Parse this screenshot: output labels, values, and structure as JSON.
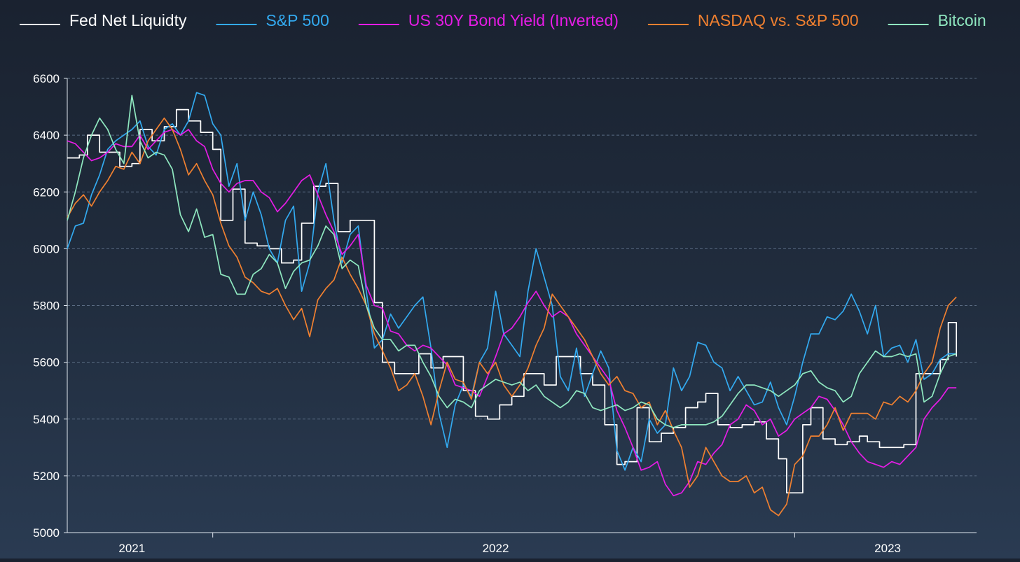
{
  "chart_data": {
    "type": "line",
    "title": "",
    "xlabel": "",
    "ylabel": "",
    "ylim": [
      5000,
      6600
    ],
    "yticks": [
      5000,
      5200,
      5400,
      5600,
      5800,
      6000,
      6200,
      6400,
      6600
    ],
    "xlim": [
      2020.92,
      2023.17
    ],
    "xticks": [
      {
        "label": "2021",
        "at": 2021.08
      },
      {
        "label": "2022",
        "at": 2021.98
      },
      {
        "label": "2023",
        "at": 2022.95
      }
    ],
    "xtick_marks": [
      2021.28,
      2022.72
    ],
    "grid": "horizontal-dashed",
    "legend_position": "top",
    "series": [
      {
        "name": "Fed Net Liquidty",
        "color": "#ffffff",
        "style": "step",
        "x": [
          2020.92,
          2020.95,
          2020.97,
          2021.0,
          2021.02,
          2021.05,
          2021.08,
          2021.1,
          2021.13,
          2021.16,
          2021.19,
          2021.22,
          2021.25,
          2021.28,
          2021.3,
          2021.33,
          2021.36,
          2021.39,
          2021.42,
          2021.45,
          2021.48,
          2021.5,
          2021.53,
          2021.56,
          2021.59,
          2021.62,
          2021.65,
          2021.68,
          2021.7,
          2021.73,
          2021.76,
          2021.79,
          2021.82,
          2021.85,
          2021.88,
          2021.9,
          2021.93,
          2021.96,
          2021.99,
          2022.02,
          2022.05,
          2022.08,
          2022.1,
          2022.13,
          2022.16,
          2022.19,
          2022.22,
          2022.25,
          2022.28,
          2022.3,
          2022.33,
          2022.36,
          2022.39,
          2022.42,
          2022.45,
          2022.48,
          2022.5,
          2022.53,
          2022.56,
          2022.59,
          2022.62,
          2022.65,
          2022.68,
          2022.7,
          2022.72,
          2022.74,
          2022.76,
          2022.79,
          2022.82,
          2022.85,
          2022.88,
          2022.9,
          2022.93,
          2022.96,
          2022.99,
          2023.02,
          2023.05,
          2023.08,
          2023.1,
          2023.12
        ],
        "values": [
          6320,
          6330,
          6400,
          6340,
          6340,
          6290,
          6300,
          6420,
          6380,
          6430,
          6490,
          6450,
          6410,
          6350,
          6100,
          6210,
          6020,
          6010,
          6000,
          5950,
          5960,
          6090,
          6220,
          6230,
          6060,
          6100,
          6100,
          5810,
          5600,
          5560,
          5560,
          5630,
          5580,
          5620,
          5620,
          5500,
          5410,
          5400,
          5450,
          5480,
          5560,
          5560,
          5520,
          5620,
          5620,
          5560,
          5520,
          5380,
          5240,
          5250,
          5440,
          5320,
          5350,
          5370,
          5440,
          5460,
          5490,
          5380,
          5370,
          5380,
          5390,
          5330,
          5260,
          5140,
          5140,
          5380,
          5440,
          5330,
          5310,
          5320,
          5340,
          5320,
          5300,
          5300,
          5310,
          5560,
          5560,
          5610,
          5740,
          5620
        ]
      },
      {
        "name": "S&P 500",
        "color": "#33aaf0",
        "style": "line",
        "x": [
          2020.92,
          2020.94,
          2020.96,
          2020.98,
          2021.0,
          2021.02,
          2021.04,
          2021.06,
          2021.08,
          2021.1,
          2021.12,
          2021.14,
          2021.16,
          2021.18,
          2021.2,
          2021.22,
          2021.24,
          2021.26,
          2021.28,
          2021.3,
          2021.32,
          2021.34,
          2021.36,
          2021.38,
          2021.4,
          2021.42,
          2021.44,
          2021.46,
          2021.48,
          2021.5,
          2021.52,
          2021.54,
          2021.56,
          2021.58,
          2021.6,
          2021.62,
          2021.64,
          2021.66,
          2021.68,
          2021.7,
          2021.72,
          2021.74,
          2021.76,
          2021.78,
          2021.8,
          2021.82,
          2021.84,
          2021.86,
          2021.88,
          2021.9,
          2021.92,
          2021.94,
          2021.96,
          2021.98,
          2022.0,
          2022.02,
          2022.04,
          2022.06,
          2022.08,
          2022.1,
          2022.12,
          2022.14,
          2022.16,
          2022.18,
          2022.2,
          2022.22,
          2022.24,
          2022.26,
          2022.28,
          2022.3,
          2022.32,
          2022.34,
          2022.36,
          2022.38,
          2022.4,
          2022.42,
          2022.44,
          2022.46,
          2022.48,
          2022.5,
          2022.52,
          2022.54,
          2022.56,
          2022.58,
          2022.6,
          2022.62,
          2022.64,
          2022.66,
          2022.68,
          2022.7,
          2022.72,
          2022.74,
          2022.76,
          2022.78,
          2022.8,
          2022.82,
          2022.84,
          2022.86,
          2022.88,
          2022.9,
          2022.92,
          2022.94,
          2022.96,
          2022.98,
          2023.0,
          2023.02,
          2023.04,
          2023.06,
          2023.08,
          2023.1,
          2023.12
        ],
        "values": [
          6000,
          6080,
          6090,
          6190,
          6260,
          6350,
          6380,
          6400,
          6420,
          6450,
          6360,
          6330,
          6420,
          6440,
          6400,
          6450,
          6550,
          6540,
          6440,
          6400,
          6220,
          6300,
          6100,
          6200,
          6120,
          6000,
          5950,
          6100,
          6150,
          5850,
          5950,
          6200,
          6300,
          6100,
          5950,
          6050,
          6080,
          5850,
          5650,
          5680,
          5770,
          5720,
          5760,
          5800,
          5830,
          5650,
          5420,
          5300,
          5450,
          5520,
          5480,
          5600,
          5650,
          5850,
          5700,
          5660,
          5620,
          5850,
          6000,
          5900,
          5800,
          5550,
          5500,
          5650,
          5480,
          5560,
          5640,
          5580,
          5290,
          5220,
          5300,
          5250,
          5400,
          5350,
          5380,
          5580,
          5500,
          5550,
          5670,
          5660,
          5600,
          5580,
          5500,
          5550,
          5500,
          5450,
          5460,
          5530,
          5440,
          5380,
          5480,
          5600,
          5700,
          5700,
          5760,
          5750,
          5780,
          5840,
          5780,
          5700,
          5800,
          5620,
          5650,
          5660,
          5600,
          5680,
          5540,
          5560,
          5610,
          5630,
          5630
        ]
      },
      {
        "name": "US 30Y Bond Yield (Inverted)",
        "color": "#e61ce6",
        "style": "line",
        "x": [
          2020.92,
          2020.94,
          2020.96,
          2020.98,
          2021.0,
          2021.02,
          2021.04,
          2021.06,
          2021.08,
          2021.1,
          2021.12,
          2021.14,
          2021.16,
          2021.18,
          2021.2,
          2021.22,
          2021.24,
          2021.26,
          2021.28,
          2021.3,
          2021.32,
          2021.34,
          2021.36,
          2021.38,
          2021.4,
          2021.42,
          2021.44,
          2021.46,
          2021.48,
          2021.5,
          2021.52,
          2021.54,
          2021.56,
          2021.58,
          2021.6,
          2021.62,
          2021.64,
          2021.66,
          2021.68,
          2021.7,
          2021.72,
          2021.74,
          2021.76,
          2021.78,
          2021.8,
          2021.82,
          2021.84,
          2021.86,
          2021.88,
          2021.9,
          2021.92,
          2021.94,
          2021.96,
          2021.98,
          2022.0,
          2022.02,
          2022.04,
          2022.06,
          2022.08,
          2022.1,
          2022.12,
          2022.14,
          2022.16,
          2022.18,
          2022.2,
          2022.22,
          2022.24,
          2022.26,
          2022.28,
          2022.3,
          2022.32,
          2022.34,
          2022.36,
          2022.38,
          2022.4,
          2022.42,
          2022.44,
          2022.46,
          2022.48,
          2022.5,
          2022.52,
          2022.54,
          2022.56,
          2022.58,
          2022.6,
          2022.62,
          2022.64,
          2022.66,
          2022.68,
          2022.7,
          2022.72,
          2022.74,
          2022.76,
          2022.78,
          2022.8,
          2022.82,
          2022.84,
          2022.86,
          2022.88,
          2022.9,
          2022.92,
          2022.94,
          2022.96,
          2022.98,
          2023.0,
          2023.02,
          2023.04,
          2023.06,
          2023.08,
          2023.1,
          2023.12
        ],
        "values": [
          6380,
          6370,
          6340,
          6310,
          6320,
          6340,
          6370,
          6360,
          6360,
          6400,
          6350,
          6380,
          6410,
          6420,
          6400,
          6420,
          6380,
          6360,
          6280,
          6230,
          6200,
          6230,
          6240,
          6240,
          6200,
          6180,
          6130,
          6160,
          6200,
          6240,
          6260,
          6190,
          6120,
          6060,
          5980,
          6010,
          6050,
          5870,
          5800,
          5790,
          5710,
          5700,
          5660,
          5640,
          5660,
          5650,
          5620,
          5590,
          5520,
          5510,
          5500,
          5480,
          5550,
          5620,
          5700,
          5720,
          5760,
          5810,
          5850,
          5800,
          5760,
          5780,
          5760,
          5700,
          5660,
          5620,
          5580,
          5540,
          5430,
          5370,
          5300,
          5220,
          5230,
          5250,
          5170,
          5130,
          5140,
          5180,
          5250,
          5240,
          5280,
          5310,
          5380,
          5400,
          5450,
          5430,
          5380,
          5400,
          5340,
          5360,
          5400,
          5420,
          5440,
          5480,
          5470,
          5430,
          5380,
          5320,
          5280,
          5250,
          5240,
          5230,
          5250,
          5240,
          5270,
          5300,
          5400,
          5440,
          5470,
          5510,
          5510
        ]
      },
      {
        "name": "NASDAQ vs. S&P 500",
        "color": "#f08030",
        "style": "line",
        "x": [
          2020.92,
          2020.94,
          2020.96,
          2020.98,
          2021.0,
          2021.02,
          2021.04,
          2021.06,
          2021.08,
          2021.1,
          2021.12,
          2021.14,
          2021.16,
          2021.18,
          2021.2,
          2021.22,
          2021.24,
          2021.26,
          2021.28,
          2021.3,
          2021.32,
          2021.34,
          2021.36,
          2021.38,
          2021.4,
          2021.42,
          2021.44,
          2021.46,
          2021.48,
          2021.5,
          2021.52,
          2021.54,
          2021.56,
          2021.58,
          2021.6,
          2021.62,
          2021.64,
          2021.66,
          2021.68,
          2021.7,
          2021.72,
          2021.74,
          2021.76,
          2021.78,
          2021.8,
          2021.82,
          2021.84,
          2021.86,
          2021.88,
          2021.9,
          2021.92,
          2021.94,
          2021.96,
          2021.98,
          2022.0,
          2022.02,
          2022.04,
          2022.06,
          2022.08,
          2022.1,
          2022.12,
          2022.14,
          2022.16,
          2022.18,
          2022.2,
          2022.22,
          2022.24,
          2022.26,
          2022.28,
          2022.3,
          2022.32,
          2022.34,
          2022.36,
          2022.38,
          2022.4,
          2022.42,
          2022.44,
          2022.46,
          2022.48,
          2022.5,
          2022.52,
          2022.54,
          2022.56,
          2022.58,
          2022.6,
          2022.62,
          2022.64,
          2022.66,
          2022.68,
          2022.7,
          2022.72,
          2022.74,
          2022.76,
          2022.78,
          2022.8,
          2022.82,
          2022.84,
          2022.86,
          2022.88,
          2022.9,
          2022.92,
          2022.94,
          2022.96,
          2022.98,
          2023.0,
          2023.02,
          2023.04,
          2023.06,
          2023.08,
          2023.1,
          2023.12
        ],
        "values": [
          6110,
          6160,
          6190,
          6150,
          6200,
          6240,
          6290,
          6280,
          6340,
          6300,
          6380,
          6420,
          6460,
          6420,
          6350,
          6260,
          6300,
          6240,
          6190,
          6090,
          6010,
          5970,
          5900,
          5880,
          5850,
          5840,
          5860,
          5800,
          5750,
          5790,
          5690,
          5820,
          5860,
          5890,
          5970,
          5910,
          5860,
          5800,
          5700,
          5640,
          5580,
          5500,
          5520,
          5560,
          5480,
          5380,
          5500,
          5600,
          5540,
          5530,
          5470,
          5600,
          5560,
          5600,
          5520,
          5480,
          5520,
          5580,
          5660,
          5720,
          5840,
          5800,
          5760,
          5720,
          5680,
          5620,
          5560,
          5520,
          5550,
          5500,
          5490,
          5440,
          5460,
          5380,
          5430,
          5360,
          5300,
          5160,
          5200,
          5300,
          5250,
          5200,
          5180,
          5180,
          5200,
          5140,
          5160,
          5080,
          5060,
          5100,
          5240,
          5270,
          5340,
          5340,
          5380,
          5440,
          5360,
          5420,
          5420,
          5420,
          5400,
          5460,
          5450,
          5480,
          5460,
          5500,
          5560,
          5600,
          5720,
          5800,
          5830
        ]
      },
      {
        "name": "Bitcoin",
        "color": "#8fe8c0",
        "style": "line",
        "x": [
          2020.92,
          2020.94,
          2020.96,
          2020.98,
          2021.0,
          2021.02,
          2021.04,
          2021.06,
          2021.08,
          2021.1,
          2021.12,
          2021.14,
          2021.16,
          2021.18,
          2021.2,
          2021.22,
          2021.24,
          2021.26,
          2021.28,
          2021.3,
          2021.32,
          2021.34,
          2021.36,
          2021.38,
          2021.4,
          2021.42,
          2021.44,
          2021.46,
          2021.48,
          2021.5,
          2021.52,
          2021.54,
          2021.56,
          2021.58,
          2021.6,
          2021.62,
          2021.64,
          2021.66,
          2021.68,
          2021.7,
          2021.72,
          2021.74,
          2021.76,
          2021.78,
          2021.8,
          2021.82,
          2021.84,
          2021.86,
          2021.88,
          2021.9,
          2021.92,
          2021.94,
          2021.96,
          2021.98,
          2022.0,
          2022.02,
          2022.04,
          2022.06,
          2022.08,
          2022.1,
          2022.12,
          2022.14,
          2022.16,
          2022.18,
          2022.2,
          2022.22,
          2022.24,
          2022.26,
          2022.28,
          2022.3,
          2022.32,
          2022.34,
          2022.36,
          2022.38,
          2022.4,
          2022.42,
          2022.44,
          2022.46,
          2022.48,
          2022.5,
          2022.52,
          2022.54,
          2022.56,
          2022.58,
          2022.6,
          2022.62,
          2022.64,
          2022.66,
          2022.68,
          2022.7,
          2022.72,
          2022.74,
          2022.76,
          2022.78,
          2022.8,
          2022.82,
          2022.84,
          2022.86,
          2022.88,
          2022.9,
          2022.92,
          2022.94,
          2022.96,
          2022.98,
          2023.0,
          2023.02,
          2023.04,
          2023.06,
          2023.08,
          2023.1,
          2023.12
        ],
        "values": [
          6100,
          6200,
          6320,
          6400,
          6460,
          6420,
          6350,
          6300,
          6540,
          6380,
          6320,
          6340,
          6330,
          6280,
          6120,
          6060,
          6140,
          6040,
          6050,
          5910,
          5900,
          5840,
          5840,
          5910,
          5930,
          5980,
          5950,
          5860,
          5920,
          5950,
          5960,
          6010,
          6080,
          6050,
          5930,
          5960,
          5940,
          5800,
          5720,
          5680,
          5680,
          5640,
          5660,
          5660,
          5600,
          5550,
          5480,
          5440,
          5470,
          5460,
          5440,
          5500,
          5520,
          5540,
          5530,
          5520,
          5530,
          5500,
          5520,
          5480,
          5460,
          5440,
          5460,
          5500,
          5490,
          5440,
          5430,
          5440,
          5450,
          5430,
          5440,
          5460,
          5450,
          5400,
          5380,
          5370,
          5380,
          5380,
          5380,
          5380,
          5390,
          5410,
          5450,
          5490,
          5520,
          5520,
          5510,
          5500,
          5480,
          5500,
          5520,
          5560,
          5570,
          5530,
          5510,
          5500,
          5460,
          5480,
          5560,
          5600,
          5640,
          5620,
          5620,
          5630,
          5620,
          5630,
          5460,
          5480,
          5560,
          5620,
          5630
        ]
      }
    ]
  }
}
